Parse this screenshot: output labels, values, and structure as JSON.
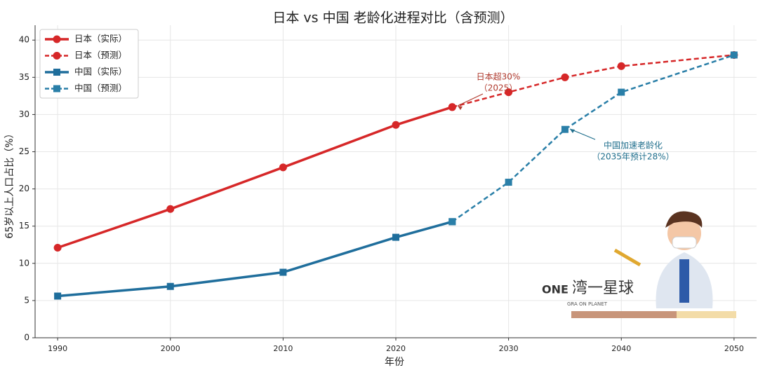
{
  "chart_data": {
    "type": "line",
    "title": "日本 vs 中国 老龄化进程对比（含预测）",
    "x_label": "年份",
    "y_label": "65岁以上人口占比（%）",
    "xlim": [
      1988,
      2052
    ],
    "xticks": [
      1990,
      2000,
      2010,
      2020,
      2030,
      2040,
      2050
    ],
    "ylim": [
      0,
      42
    ],
    "yticks": [
      0,
      5,
      10,
      15,
      20,
      25,
      30,
      35,
      40
    ],
    "grid": true,
    "legend": "upper left",
    "series": [
      {
        "name": "日本（实际）",
        "color": "#d62728",
        "marker": "circle",
        "linestyle": "solid",
        "x": [
          1990,
          2000,
          2010,
          2020,
          2025
        ],
        "values": [
          12.1,
          17.3,
          22.9,
          28.6,
          31.0
        ]
      },
      {
        "name": "日本（预测）",
        "color": "#d62728",
        "marker": "circle",
        "linestyle": "dashed",
        "x": [
          2025,
          2030,
          2035,
          2040,
          2050
        ],
        "values": [
          31.0,
          33.0,
          35.0,
          36.5,
          38.0
        ]
      },
      {
        "name": "中国（实际）",
        "color": "#1f6e9c",
        "marker": "square",
        "linestyle": "solid",
        "x": [
          1990,
          2000,
          2010,
          2020,
          2025
        ],
        "values": [
          5.6,
          6.9,
          8.8,
          13.5,
          15.6
        ]
      },
      {
        "name": "中国（预测）",
        "color": "#2a7fa8",
        "marker": "square",
        "linestyle": "dashed",
        "x": [
          2025,
          2030,
          2035,
          2040,
          2050
        ],
        "values": [
          15.6,
          20.9,
          28.0,
          33.0,
          38.0
        ]
      }
    ],
    "annotations": [
      {
        "lines": [
          "日本超30%",
          "（2025）"
        ],
        "color": "#b03a2e"
      },
      {
        "lines": [
          "中国加速老龄化",
          "（2035年预计28%）"
        ],
        "color": "#1f6e8c"
      }
    ],
    "watermark": {
      "logo": "ONE",
      "name": "湾一星球",
      "tagline": "GRA  ON  PLANET"
    }
  }
}
